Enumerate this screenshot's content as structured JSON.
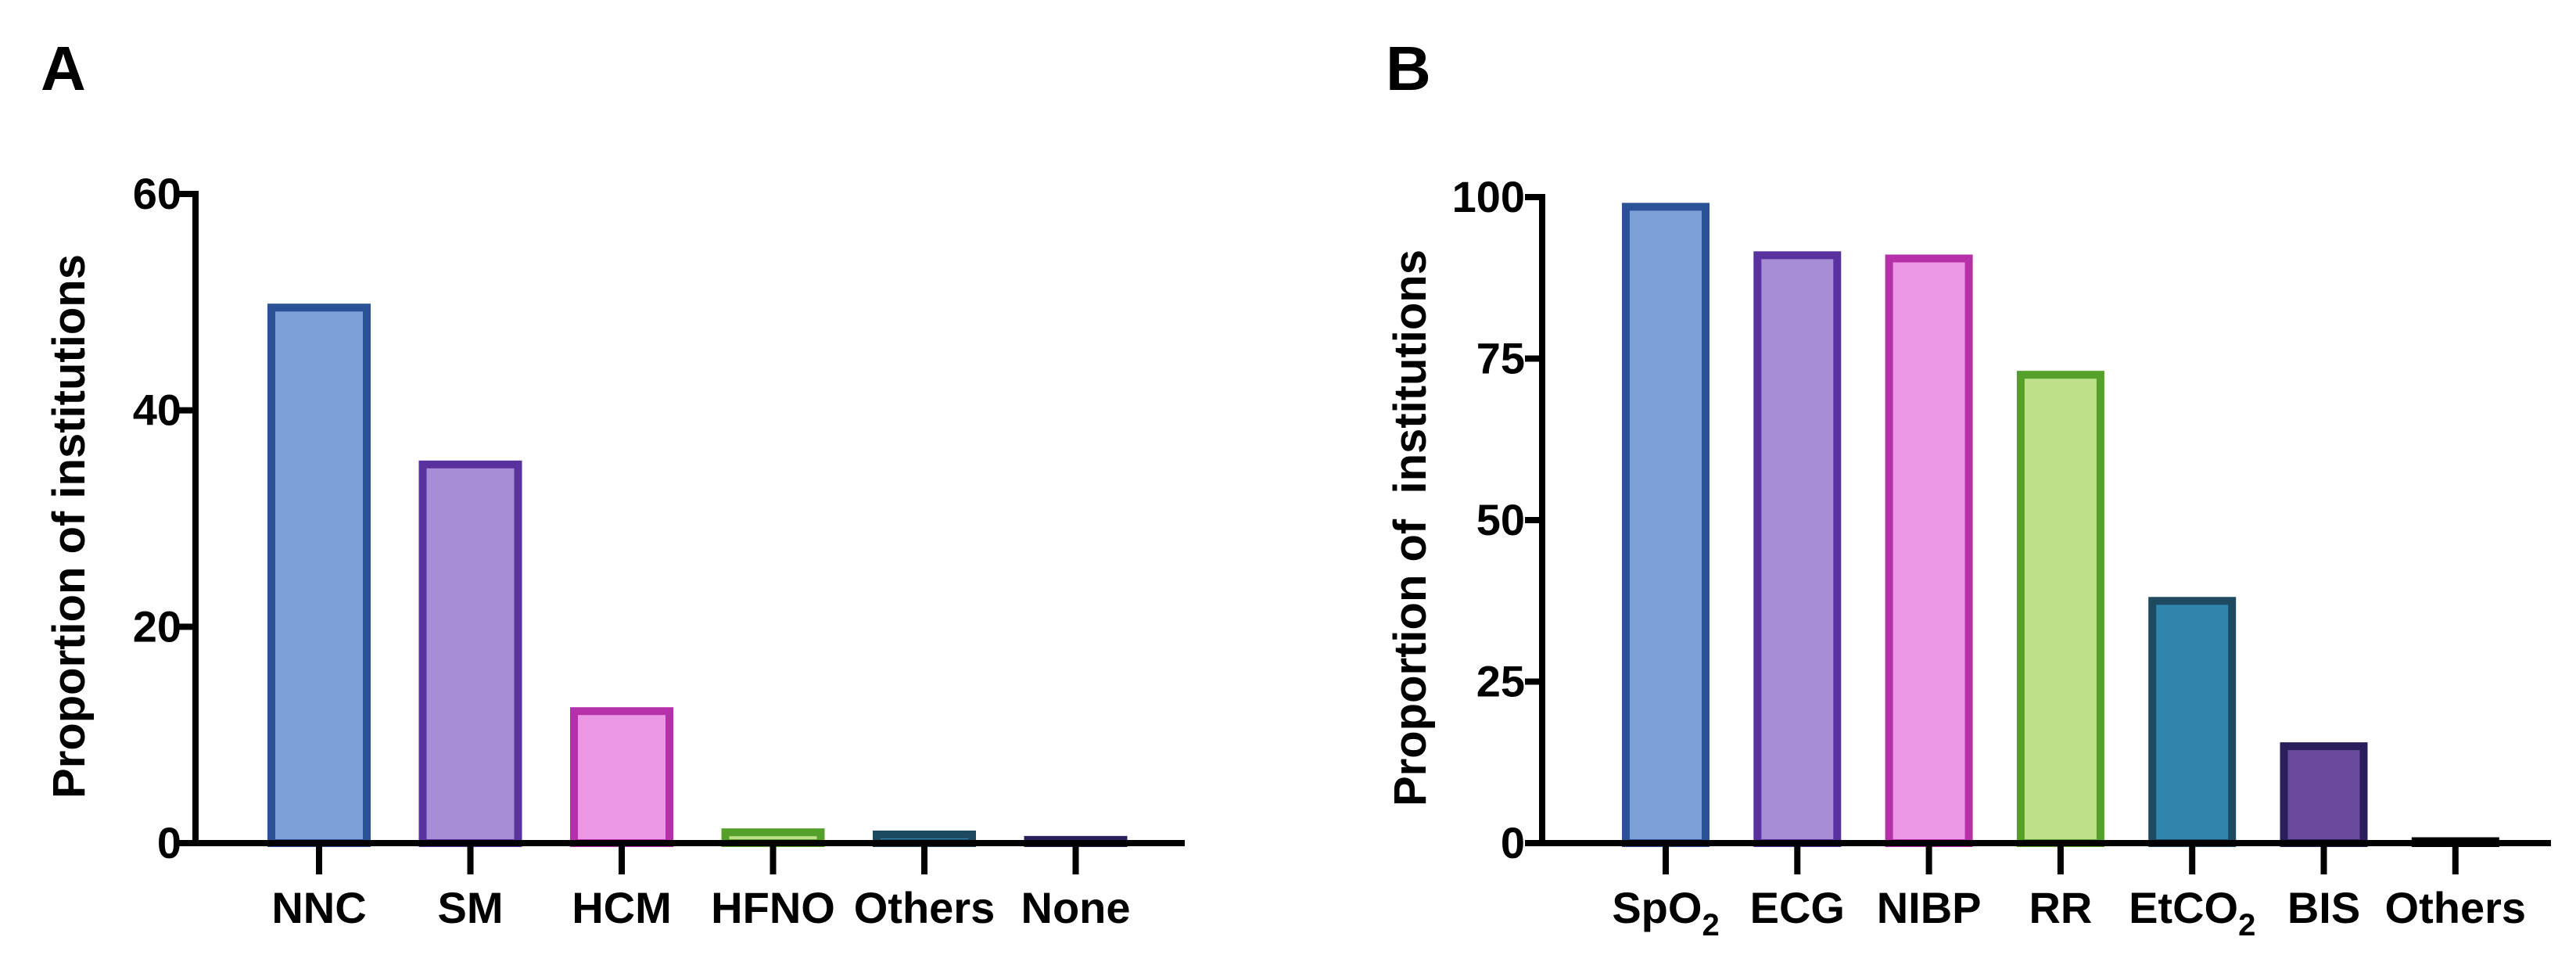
{
  "chart_data": [
    {
      "panel": "A",
      "type": "bar",
      "title": "",
      "xlabel": "",
      "ylabel": "Proportion of institutions",
      "ylim": [
        0,
        60
      ],
      "yticks": [
        "0",
        "20",
        "40",
        "60"
      ],
      "categories": [
        "NNC",
        "SM",
        "HCM",
        "HFNO",
        "Others",
        "None"
      ],
      "values": [
        49.5,
        35,
        12.2,
        1,
        0.8,
        0.3
      ],
      "fill_colors": [
        "#7da0d8",
        "#a78cd6",
        "#ec96e6",
        "#bde088",
        "#2f85ad",
        "#6a4a9c"
      ],
      "stroke_colors": [
        "#2b5197",
        "#5a32a0",
        "#b630aa",
        "#55a02a",
        "#1d4a60",
        "#2a1f5a"
      ]
    },
    {
      "panel": "B",
      "type": "bar",
      "title": "",
      "xlabel": "",
      "ylabel": "Proportion of  institutions",
      "ylim": [
        0,
        100
      ],
      "yticks": [
        "0",
        "25",
        "50",
        "75",
        "100"
      ],
      "categories": [
        {
          "text": "SpO",
          "sub": "2"
        },
        {
          "text": "ECG",
          "sub": ""
        },
        {
          "text": "NIBP",
          "sub": ""
        },
        {
          "text": "RR",
          "sub": ""
        },
        {
          "text": "EtCO",
          "sub": "2"
        },
        {
          "text": "BIS",
          "sub": ""
        },
        {
          "text": "Others",
          "sub": ""
        }
      ],
      "values": [
        98.5,
        91,
        90.5,
        72.5,
        37.5,
        15,
        0.3
      ],
      "fill_colors": [
        "#7da0d8",
        "#a78cd6",
        "#ec96e6",
        "#bde088",
        "#2f85ad",
        "#6a4a9c",
        "#2a1f5a"
      ],
      "stroke_colors": [
        "#2b5197",
        "#5a32a0",
        "#b630aa",
        "#55a02a",
        "#1d4a60",
        "#2a1f5a",
        "#000000"
      ]
    }
  ]
}
